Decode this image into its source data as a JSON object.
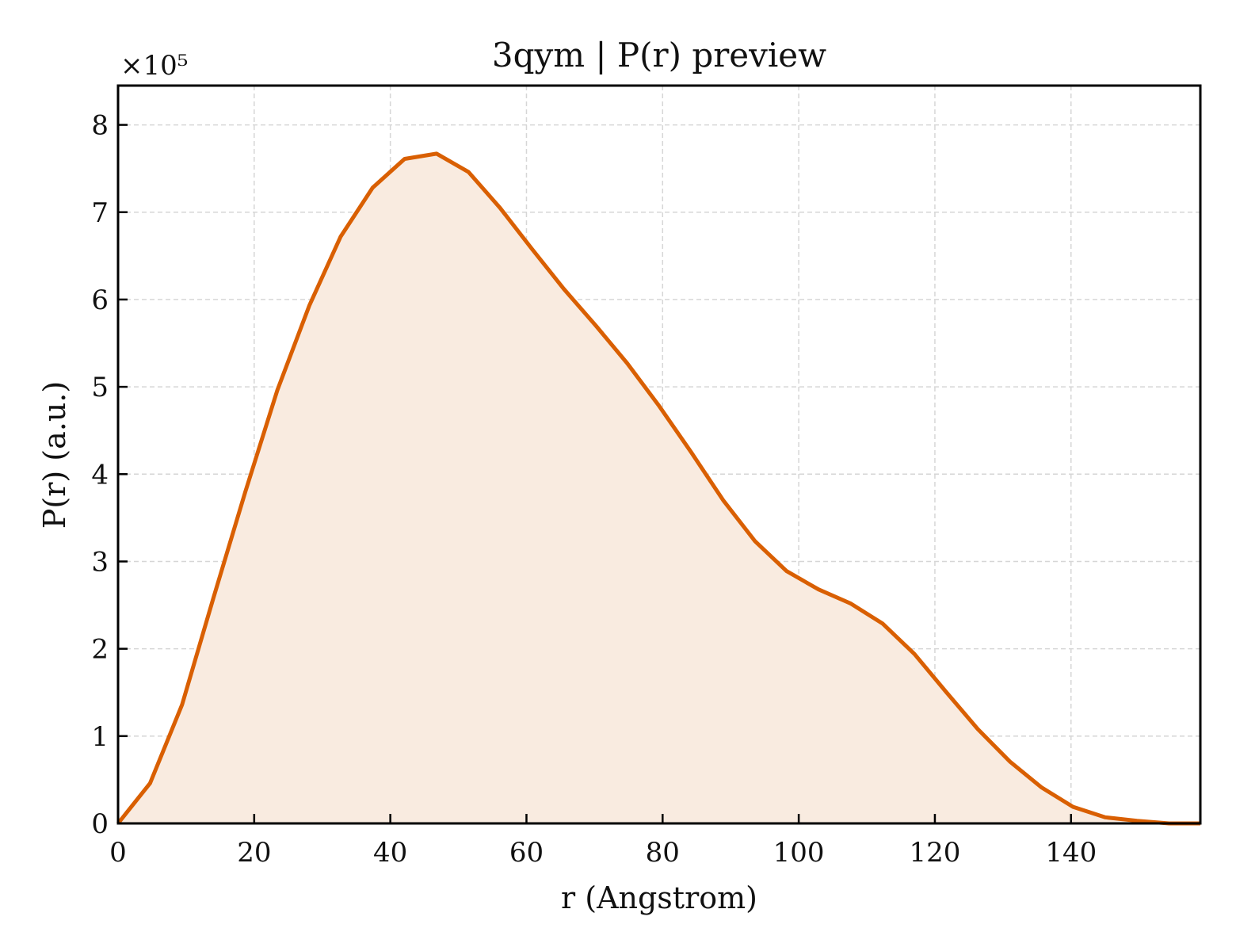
{
  "chart_data": {
    "type": "area",
    "title": "3qym | P(r) preview",
    "xlabel": "r (Angstrom)",
    "ylabel": "P(r) (a.u.)",
    "y_multiplier_label": "×10⁵",
    "y_multiplier": 100000,
    "xlim": [
      0,
      159
    ],
    "ylim": [
      0,
      8.45
    ],
    "xticks": [
      0,
      20,
      40,
      60,
      80,
      100,
      120,
      140
    ],
    "yticks": [
      0,
      1,
      2,
      3,
      4,
      5,
      6,
      7,
      8
    ],
    "grid": true,
    "line_color": "#d95f02",
    "fill_color": "#f9ebe0",
    "series": [
      {
        "x": [
          0,
          4.7,
          9.4,
          14.0,
          18.7,
          23.4,
          28.1,
          32.7,
          37.4,
          42.1,
          46.8,
          51.5,
          56.1,
          60.8,
          65.5,
          70.2,
          74.8,
          79.5,
          84.2,
          88.9,
          93.6,
          98.2,
          102.9,
          107.6,
          112.3,
          117.0,
          121.6,
          126.3,
          131.0,
          135.7,
          140.3,
          145.0,
          149.7,
          154.4,
          159.0
        ],
        "y": [
          0.0,
          0.46,
          1.36,
          2.58,
          3.8,
          4.96,
          5.93,
          6.72,
          7.28,
          7.61,
          7.67,
          7.46,
          7.05,
          6.58,
          6.12,
          5.7,
          5.27,
          4.78,
          4.25,
          3.7,
          3.23,
          2.89,
          2.68,
          2.52,
          2.29,
          1.94,
          1.51,
          1.08,
          0.71,
          0.41,
          0.19,
          0.07,
          0.03,
          0.0,
          0.0
        ]
      }
    ]
  }
}
